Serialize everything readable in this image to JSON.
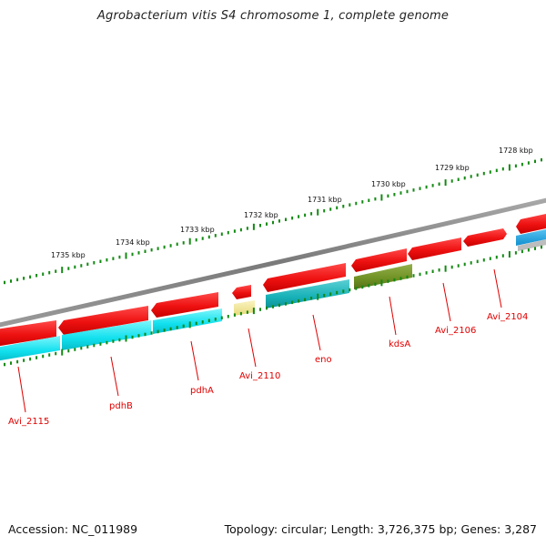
{
  "title": "Agrobacterium vitis S4 chromosome 1, complete genome",
  "accession": "Accession: NC_011989",
  "topology": "Topology: circular; Length: 3,726,375 bp; Genes: 3,287",
  "colors": {
    "cds_red": "#ee1111",
    "cds_cyan": "#11e0ee",
    "cds_teal": "#17b2b8",
    "cds_olive": "#6e8f22",
    "cds_yellow": "#f0e79a",
    "cds_blue": "#1aa6e6",
    "backbone": "#8a8a8a",
    "tick": "#138a13",
    "label": "#e00000"
  },
  "ticks": [
    "1735 kbp",
    "1734 kbp",
    "1733 kbp",
    "1732 kbp",
    "1731 kbp",
    "1730 kbp",
    "1729 kbp",
    "1728 kbp"
  ],
  "genes": [
    "Avi_2115",
    "pdhB",
    "pdhA",
    "Avi_2110",
    "eno",
    "kdsA",
    "Avi_2106",
    "Avi_2104"
  ]
}
